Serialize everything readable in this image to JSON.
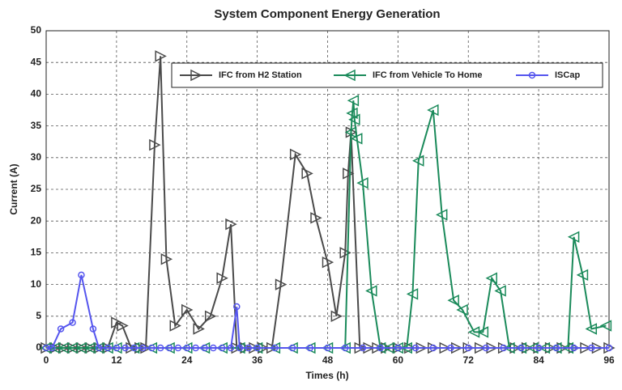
{
  "chart_data": {
    "type": "line",
    "title": "System Component Energy Generation",
    "x_label": "Times (h)",
    "y_label": "Current (A)",
    "xlim": [
      0,
      96
    ],
    "xticks": [
      0,
      12,
      24,
      36,
      48,
      60,
      72,
      84,
      96
    ],
    "ylim": [
      0,
      50
    ],
    "yticks": [
      0,
      5,
      10,
      15,
      20,
      25,
      30,
      35,
      40,
      45,
      50
    ],
    "grid": true,
    "legend": "upper right",
    "series": [
      {
        "name": "IFC from H2 Station",
        "color": "#4a4a4a",
        "marker": "triangle-right",
        "x": [
          0,
          1.5,
          3,
          4.5,
          6,
          7.5,
          9,
          10.5,
          12,
          13,
          14.5,
          16,
          17,
          18.5,
          19.5,
          20.5,
          22,
          24,
          26,
          28,
          30,
          31.5,
          32.5,
          34,
          35.5,
          37,
          38.5,
          40,
          42.5,
          44.5,
          46,
          48,
          49.5,
          51,
          51.5,
          52,
          53.5,
          55,
          56.5,
          58,
          60,
          62,
          64,
          66,
          68,
          70,
          72,
          74,
          76,
          78,
          80,
          82,
          84,
          86,
          88,
          90,
          92,
          94,
          96
        ],
        "values": [
          0,
          0,
          0,
          0,
          0,
          0,
          0,
          0,
          4,
          3.5,
          0,
          0,
          0,
          32,
          46,
          14,
          3.5,
          6,
          3,
          5,
          11,
          19.5,
          0,
          0,
          0,
          0,
          0,
          10,
          30.5,
          27.5,
          20.5,
          13.5,
          5,
          15,
          27.5,
          34,
          0,
          0,
          0,
          0,
          0,
          0,
          0,
          0,
          0,
          0,
          0,
          0,
          0,
          0,
          0,
          0,
          0,
          0,
          0,
          0,
          0,
          0,
          0
        ]
      },
      {
        "name": "IFC from Vehicle To Home",
        "color": "#1a8a5a",
        "marker": "triangle-left",
        "x": [
          0,
          1.5,
          3,
          4.5,
          6,
          7.5,
          9,
          10.5,
          12,
          15,
          18,
          21,
          24,
          27,
          30,
          33,
          36,
          39,
          42,
          45,
          48,
          51,
          52,
          52.2,
          52.4,
          52.6,
          53,
          54,
          55.5,
          57,
          58.5,
          60,
          61.5,
          62.5,
          63.5,
          66,
          67.5,
          69.5,
          71,
          73,
          74.5,
          76,
          77.5,
          79,
          81,
          83,
          85,
          87,
          89,
          90,
          91.5,
          93,
          95.5
        ],
        "values": [
          0,
          0,
          0,
          0,
          0,
          0,
          0,
          0,
          0,
          0,
          0,
          0,
          0,
          0,
          0,
          0,
          0,
          0,
          0,
          0,
          0,
          0,
          34,
          37,
          39,
          36,
          33,
          26,
          9,
          0,
          0,
          0,
          0,
          8.5,
          29.5,
          37.5,
          21,
          7.5,
          6,
          2.5,
          2.5,
          11,
          9,
          0,
          0,
          0,
          0,
          0,
          0,
          17.5,
          11.5,
          3,
          3.5
        ]
      },
      {
        "name": "ISCap",
        "color": "#5555ee",
        "marker": "circle",
        "x": [
          0,
          1,
          2.5,
          4.5,
          6,
          8,
          9,
          10.5,
          12,
          13.5,
          15,
          16.5,
          18,
          19.5,
          21,
          22.5,
          24,
          25.5,
          27,
          28.5,
          30,
          31.5,
          32.5,
          33,
          34.5,
          36,
          39,
          42,
          45,
          48,
          51,
          54,
          57,
          60,
          63,
          66,
          69,
          72,
          75,
          78,
          81,
          84,
          87,
          90,
          93,
          96
        ],
        "values": [
          0,
          0,
          3,
          4,
          11.5,
          3,
          0,
          0,
          0,
          0,
          0,
          0,
          0,
          0,
          0,
          0,
          0,
          0,
          0,
          0,
          0,
          0,
          6.5,
          0,
          0,
          0,
          0,
          0,
          0,
          0,
          0,
          0,
          0,
          0,
          0,
          0,
          0,
          0,
          0,
          0,
          0,
          0,
          0,
          0,
          0,
          0
        ]
      }
    ]
  }
}
